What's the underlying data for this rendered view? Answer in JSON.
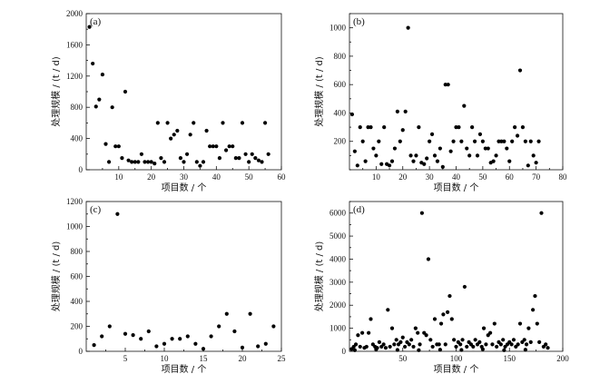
{
  "chart_data": [
    {
      "type": "scatter",
      "label": "(a)",
      "xlabel": "项目数 / 个",
      "ylabel": "处理规模 / (t / d)",
      "xlim": [
        0,
        60
      ],
      "ylim": [
        0,
        2000
      ],
      "xticks": [
        10,
        20,
        30,
        40,
        50,
        60
      ],
      "yticks": [
        0,
        200,
        400,
        600,
        800,
        1000,
        1200,
        1400,
        1600,
        1800,
        2000
      ],
      "ytick_labels": [
        "0",
        "",
        "400",
        "",
        "800",
        "",
        "1200",
        "",
        "1600",
        "",
        "2000"
      ],
      "points": [
        [
          1,
          1830
        ],
        [
          2,
          1360
        ],
        [
          3,
          810
        ],
        [
          4,
          900
        ],
        [
          5,
          1220
        ],
        [
          6,
          330
        ],
        [
          7,
          100
        ],
        [
          8,
          800
        ],
        [
          9,
          300
        ],
        [
          10,
          300
        ],
        [
          11,
          150
        ],
        [
          12,
          1000
        ],
        [
          13,
          120
        ],
        [
          14,
          100
        ],
        [
          15,
          100
        ],
        [
          16,
          100
        ],
        [
          17,
          200
        ],
        [
          18,
          100
        ],
        [
          19,
          100
        ],
        [
          20,
          100
        ],
        [
          21,
          80
        ],
        [
          22,
          600
        ],
        [
          23,
          150
        ],
        [
          24,
          100
        ],
        [
          25,
          600
        ],
        [
          26,
          400
        ],
        [
          27,
          450
        ],
        [
          28,
          500
        ],
        [
          29,
          150
        ],
        [
          30,
          100
        ],
        [
          31,
          200
        ],
        [
          32,
          450
        ],
        [
          33,
          600
        ],
        [
          34,
          100
        ],
        [
          35,
          50
        ],
        [
          36,
          100
        ],
        [
          37,
          500
        ],
        [
          38,
          300
        ],
        [
          39,
          300
        ],
        [
          40,
          300
        ],
        [
          41,
          150
        ],
        [
          42,
          600
        ],
        [
          43,
          250
        ],
        [
          44,
          300
        ],
        [
          45,
          300
        ],
        [
          46,
          150
        ],
        [
          47,
          150
        ],
        [
          48,
          600
        ],
        [
          49,
          200
        ],
        [
          50,
          100
        ],
        [
          51,
          200
        ],
        [
          52,
          150
        ],
        [
          53,
          120
        ],
        [
          54,
          100
        ],
        [
          55,
          600
        ],
        [
          56,
          200
        ]
      ]
    },
    {
      "type": "scatter",
      "label": "(b)",
      "xlabel": "项目数 / 个",
      "ylabel": "处理规模 / (t / d)",
      "xlim": [
        0,
        80
      ],
      "ylim": [
        0,
        1100
      ],
      "xticks": [
        10,
        20,
        30,
        40,
        50,
        60,
        70,
        80
      ],
      "yticks": [
        0,
        100,
        200,
        300,
        400,
        500,
        600,
        700,
        800,
        900,
        1000,
        1100
      ],
      "ytick_labels": [
        "",
        "",
        "200",
        "",
        "400",
        "",
        "600",
        "",
        "800",
        "",
        "1000",
        ""
      ],
      "points": [
        [
          1,
          390
        ],
        [
          2,
          130
        ],
        [
          3,
          30
        ],
        [
          4,
          300
        ],
        [
          5,
          200
        ],
        [
          6,
          60
        ],
        [
          7,
          300
        ],
        [
          8,
          300
        ],
        [
          9,
          150
        ],
        [
          10,
          100
        ],
        [
          11,
          200
        ],
        [
          12,
          40
        ],
        [
          13,
          300
        ],
        [
          14,
          40
        ],
        [
          15,
          30
        ],
        [
          16,
          60
        ],
        [
          17,
          150
        ],
        [
          18,
          410
        ],
        [
          19,
          200
        ],
        [
          20,
          280
        ],
        [
          21,
          410
        ],
        [
          22,
          1000
        ],
        [
          23,
          100
        ],
        [
          24,
          60
        ],
        [
          25,
          100
        ],
        [
          26,
          300
        ],
        [
          27,
          50
        ],
        [
          28,
          40
        ],
        [
          29,
          80
        ],
        [
          30,
          200
        ],
        [
          31,
          250
        ],
        [
          32,
          100
        ],
        [
          33,
          60
        ],
        [
          34,
          150
        ],
        [
          35,
          20
        ],
        [
          36,
          600
        ],
        [
          37,
          600
        ],
        [
          38,
          130
        ],
        [
          39,
          200
        ],
        [
          40,
          300
        ],
        [
          41,
          300
        ],
        [
          42,
          200
        ],
        [
          43,
          450
        ],
        [
          44,
          150
        ],
        [
          45,
          100
        ],
        [
          46,
          300
        ],
        [
          47,
          200
        ],
        [
          48,
          100
        ],
        [
          49,
          250
        ],
        [
          50,
          200
        ],
        [
          51,
          150
        ],
        [
          52,
          150
        ],
        [
          53,
          50
        ],
        [
          54,
          60
        ],
        [
          55,
          100
        ],
        [
          56,
          200
        ],
        [
          57,
          200
        ],
        [
          58,
          200
        ],
        [
          59,
          150
        ],
        [
          60,
          60
        ],
        [
          61,
          200
        ],
        [
          62,
          300
        ],
        [
          63,
          240
        ],
        [
          64,
          700
        ],
        [
          65,
          300
        ],
        [
          66,
          200
        ],
        [
          67,
          30
        ],
        [
          68,
          200
        ],
        [
          69,
          100
        ],
        [
          70,
          50
        ],
        [
          71,
          200
        ]
      ]
    },
    {
      "type": "scatter",
      "label": "(c)",
      "xlabel": "项目数 / 个",
      "ylabel": "处理规模 / (t / d)",
      "xlim": [
        0,
        25
      ],
      "ylim": [
        0,
        1200
      ],
      "xticks": [
        5,
        10,
        15,
        20,
        25
      ],
      "yticks": [
        0,
        100,
        200,
        300,
        400,
        500,
        600,
        700,
        800,
        900,
        1000,
        1100,
        1200
      ],
      "ytick_labels": [
        "0",
        "",
        "200",
        "",
        "400",
        "",
        "600",
        "",
        "800",
        "",
        "1000",
        "",
        "1200"
      ],
      "points": [
        [
          1,
          50
        ],
        [
          2,
          120
        ],
        [
          3,
          200
        ],
        [
          4,
          1100
        ],
        [
          5,
          140
        ],
        [
          6,
          130
        ],
        [
          7,
          100
        ],
        [
          8,
          160
        ],
        [
          9,
          40
        ],
        [
          10,
          60
        ],
        [
          11,
          100
        ],
        [
          12,
          100
        ],
        [
          13,
          120
        ],
        [
          14,
          60
        ],
        [
          15,
          20
        ],
        [
          16,
          120
        ],
        [
          17,
          200
        ],
        [
          18,
          300
        ],
        [
          19,
          160
        ],
        [
          20,
          30
        ],
        [
          21,
          300
        ],
        [
          22,
          40
        ],
        [
          23,
          60
        ],
        [
          24,
          200
        ]
      ]
    },
    {
      "type": "scatter",
      "label": "(d)",
      "xlabel": "项目数 / 个",
      "ylabel": "处理规模 / (t / d)",
      "xlim": [
        0,
        200
      ],
      "ylim": [
        0,
        6500
      ],
      "xticks": [
        50,
        100,
        150,
        200
      ],
      "yticks": [
        0,
        500,
        1000,
        1500,
        2000,
        2500,
        3000,
        3500,
        4000,
        4500,
        5000,
        5500,
        6000,
        6500
      ],
      "ytick_labels": [
        "0",
        "",
        "1000",
        "",
        "2000",
        "",
        "3000",
        "",
        "4000",
        "",
        "5000",
        "",
        "6000",
        ""
      ],
      "points": [
        [
          2,
          100
        ],
        [
          4,
          200
        ],
        [
          6,
          300
        ],
        [
          8,
          700
        ],
        [
          10,
          200
        ],
        [
          12,
          800
        ],
        [
          14,
          150
        ],
        [
          16,
          200
        ],
        [
          18,
          800
        ],
        [
          20,
          1400
        ],
        [
          22,
          300
        ],
        [
          24,
          200
        ],
        [
          26,
          150
        ],
        [
          28,
          400
        ],
        [
          30,
          200
        ],
        [
          32,
          300
        ],
        [
          34,
          150
        ],
        [
          36,
          1800
        ],
        [
          38,
          200
        ],
        [
          40,
          1000
        ],
        [
          42,
          300
        ],
        [
          44,
          500
        ],
        [
          46,
          300
        ],
        [
          48,
          400
        ],
        [
          50,
          600
        ],
        [
          52,
          200
        ],
        [
          54,
          400
        ],
        [
          56,
          300
        ],
        [
          58,
          500
        ],
        [
          60,
          200
        ],
        [
          62,
          1000
        ],
        [
          64,
          800
        ],
        [
          66,
          300
        ],
        [
          68,
          6000
        ],
        [
          70,
          800
        ],
        [
          72,
          700
        ],
        [
          74,
          4000
        ],
        [
          76,
          500
        ],
        [
          78,
          200
        ],
        [
          80,
          1400
        ],
        [
          82,
          300
        ],
        [
          84,
          300
        ],
        [
          86,
          1200
        ],
        [
          88,
          1600
        ],
        [
          90,
          300
        ],
        [
          92,
          1700
        ],
        [
          94,
          2400
        ],
        [
          96,
          1400
        ],
        [
          98,
          500
        ],
        [
          100,
          200
        ],
        [
          102,
          400
        ],
        [
          104,
          300
        ],
        [
          106,
          500
        ],
        [
          108,
          2800
        ],
        [
          110,
          200
        ],
        [
          112,
          400
        ],
        [
          114,
          300
        ],
        [
          116,
          200
        ],
        [
          118,
          500
        ],
        [
          120,
          300
        ],
        [
          122,
          400
        ],
        [
          124,
          200
        ],
        [
          126,
          1000
        ],
        [
          128,
          300
        ],
        [
          130,
          700
        ],
        [
          132,
          800
        ],
        [
          134,
          300
        ],
        [
          136,
          1200
        ],
        [
          138,
          200
        ],
        [
          140,
          400
        ],
        [
          142,
          300
        ],
        [
          144,
          500
        ],
        [
          146,
          200
        ],
        [
          148,
          300
        ],
        [
          150,
          400
        ],
        [
          152,
          300
        ],
        [
          154,
          500
        ],
        [
          156,
          200
        ],
        [
          158,
          300
        ],
        [
          160,
          1200
        ],
        [
          162,
          400
        ],
        [
          164,
          500
        ],
        [
          166,
          300
        ],
        [
          168,
          1000
        ],
        [
          170,
          400
        ],
        [
          172,
          1800
        ],
        [
          174,
          2400
        ],
        [
          176,
          1200
        ],
        [
          178,
          400
        ],
        [
          180,
          6000
        ],
        [
          182,
          200
        ],
        [
          184,
          300
        ],
        [
          186,
          150
        ],
        [
          5,
          50
        ],
        [
          25,
          80
        ],
        [
          45,
          60
        ],
        [
          65,
          50
        ],
        [
          85,
          70
        ],
        [
          105,
          60
        ],
        [
          125,
          90
        ],
        [
          145,
          50
        ],
        [
          165,
          70
        ]
      ]
    }
  ]
}
